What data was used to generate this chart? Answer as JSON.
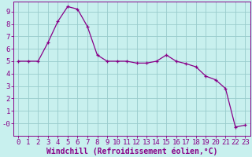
{
  "x": [
    0,
    1,
    2,
    3,
    4,
    5,
    6,
    7,
    8,
    9,
    10,
    11,
    12,
    13,
    14,
    15,
    16,
    17,
    18,
    19,
    20,
    21,
    22,
    23
  ],
  "y": [
    5.0,
    5.0,
    5.0,
    6.5,
    8.2,
    9.4,
    9.2,
    7.8,
    5.5,
    5.0,
    5.0,
    5.0,
    4.85,
    4.85,
    5.0,
    5.5,
    5.0,
    4.8,
    4.55,
    3.8,
    3.5,
    2.8,
    -0.3,
    -0.15
  ],
  "line_color": "#880088",
  "marker": "+",
  "bg_color": "#c8f0ee",
  "grid_color": "#99cccc",
  "xlabel": "Windchill (Refroidissement éolien,°C)",
  "xlabel_color": "#880088",
  "tick_color": "#880088",
  "xlim": [
    -0.5,
    23.5
  ],
  "ylim": [
    -1.0,
    9.8
  ],
  "yticks": [
    0,
    1,
    2,
    3,
    4,
    5,
    6,
    7,
    8,
    9
  ],
  "xticks": [
    0,
    1,
    2,
    3,
    4,
    5,
    6,
    7,
    8,
    9,
    10,
    11,
    12,
    13,
    14,
    15,
    16,
    17,
    18,
    19,
    20,
    21,
    22,
    23
  ],
  "ytick_labels": [
    "-0",
    "1",
    "2",
    "3",
    "4",
    "5",
    "6",
    "7",
    "8",
    "9"
  ],
  "font_size": 6.5,
  "xlabel_fontsize": 7.0
}
